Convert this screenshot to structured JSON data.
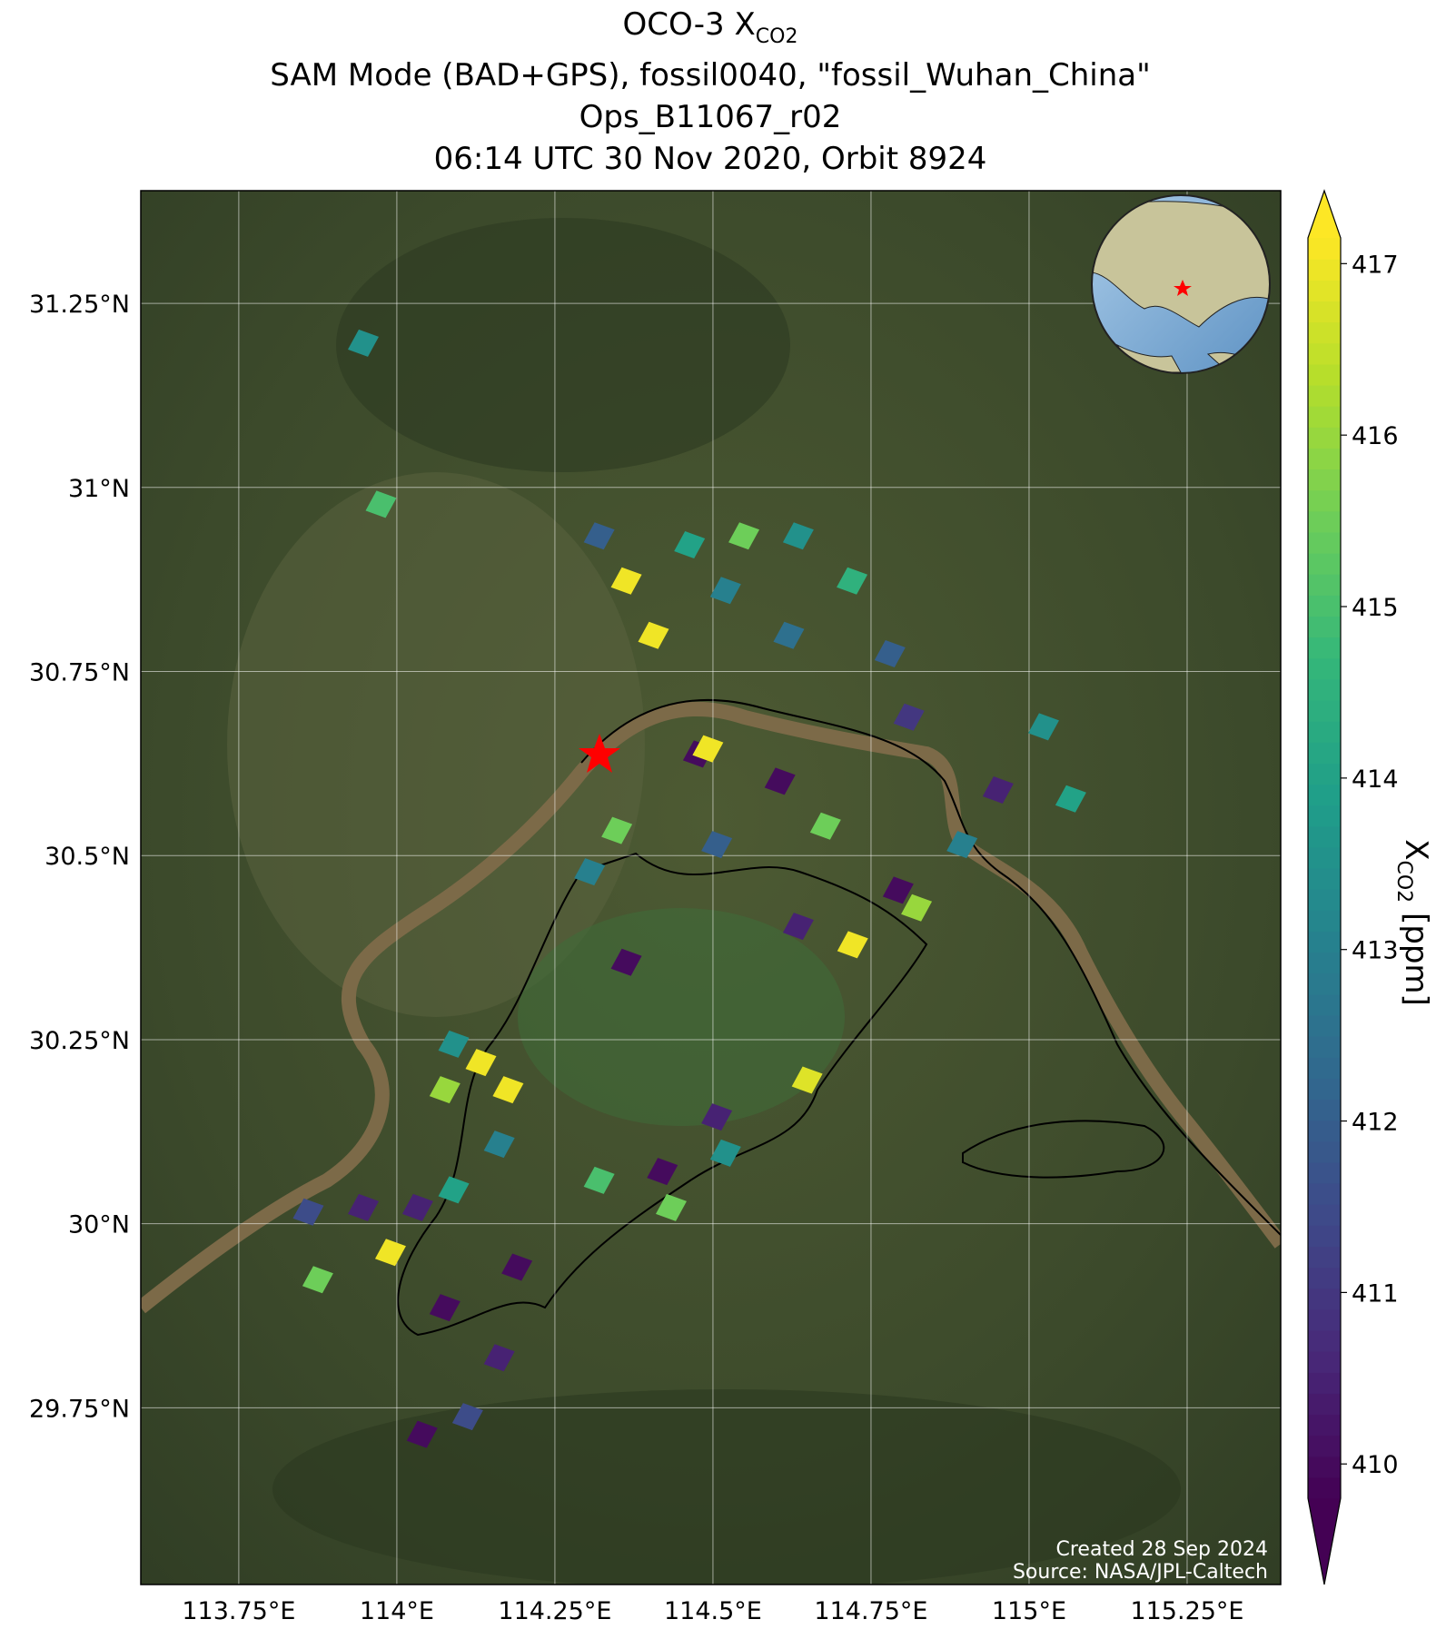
{
  "chart_data": {
    "type": "map-soundings",
    "title": {
      "main": "OCO-3 X",
      "main_sub": "CO2",
      "lines": [
        "SAM Mode (BAD+GPS), fossil0040, \"fossil_Wuhan_China\"",
        "Ops_B11067_r02",
        "06:14 UTC 30 Nov 2020, Orbit 8924"
      ]
    },
    "xlim": [
      113.595,
      115.398
    ],
    "ylim": [
      29.51,
      31.403
    ],
    "xticks": [
      {
        "value": 113.75,
        "label": "113.75°E"
      },
      {
        "value": 114,
        "label": "114°E"
      },
      {
        "value": 114.25,
        "label": "114.25°E"
      },
      {
        "value": 114.5,
        "label": "114.5°E"
      },
      {
        "value": 114.75,
        "label": "114.75°E"
      },
      {
        "value": 115,
        "label": "115°E"
      },
      {
        "value": 115.25,
        "label": "115.25°E"
      }
    ],
    "yticks": [
      {
        "value": 29.75,
        "label": "29.75°N"
      },
      {
        "value": 30,
        "label": "30°N"
      },
      {
        "value": 30.25,
        "label": "30.25°N"
      },
      {
        "value": 30.5,
        "label": "30.5°N"
      },
      {
        "value": 30.75,
        "label": "30.75°N"
      },
      {
        "value": 31,
        "label": "31°N"
      },
      {
        "value": 31.25,
        "label": "31.25°N"
      }
    ],
    "grid": true,
    "colorbar": {
      "label": "X",
      "label_sub": "CO2",
      "label_unit": " [ppm]",
      "clim": [
        409.8,
        417.15
      ],
      "ticks": [
        410,
        411,
        412,
        413,
        414,
        415,
        416,
        417
      ],
      "colormap": "viridis"
    },
    "soundings": {
      "lon": [
        113.947,
        113.975,
        114.363,
        114.406,
        114.463,
        114.549,
        114.635,
        114.72,
        114.32,
        114.52,
        114.62,
        114.78,
        114.81,
        115.023,
        114.951,
        114.894,
        115.066,
        114.477,
        114.492,
        114.606,
        114.678,
        114.793,
        114.822,
        114.721,
        114.363,
        114.305,
        114.348,
        114.506,
        114.635,
        114.649,
        114.133,
        114.176,
        114.09,
        114.076,
        114.162,
        114.506,
        114.42,
        114.32,
        114.434,
        114.52,
        113.947,
        114.033,
        113.99,
        113.875,
        113.86,
        114.09,
        114.19,
        114.076,
        114.162,
        114.04,
        114.112
      ],
      "lat": [
        31.196,
        30.977,
        30.873,
        30.799,
        30.922,
        30.934,
        30.934,
        30.873,
        30.934,
        30.86,
        30.799,
        30.774,
        30.688,
        30.675,
        30.589,
        30.515,
        30.577,
        30.638,
        30.645,
        30.601,
        30.54,
        30.453,
        30.429,
        30.379,
        30.355,
        30.478,
        30.534,
        30.515,
        30.404,
        30.195,
        30.219,
        30.182,
        30.244,
        30.182,
        30.108,
        30.145,
        30.071,
        30.059,
        30.022,
        30.096,
        30.022,
        30.022,
        29.961,
        29.924,
        30.016,
        30.046,
        29.941,
        29.886,
        29.818,
        29.714,
        29.738
      ],
      "xco2": [
        413.5,
        415,
        417,
        417,
        414,
        415.5,
        413.5,
        414.5,
        412,
        413,
        412.5,
        412,
        411,
        413.5,
        410.5,
        413,
        414,
        410,
        417,
        410,
        415.5,
        410,
        416,
        417,
        410,
        413,
        415.5,
        412,
        410.5,
        416.8,
        417,
        417,
        413.5,
        416,
        413,
        410.5,
        410,
        415,
        415.5,
        413.5,
        410.5,
        410.5,
        417,
        415.5,
        411.5,
        414,
        410,
        410,
        410.5,
        410,
        411.5
      ]
    },
    "footnotes": [
      "Created 28 Sep 2024",
      "Source: NASA/JPL-Caltech"
    ]
  }
}
